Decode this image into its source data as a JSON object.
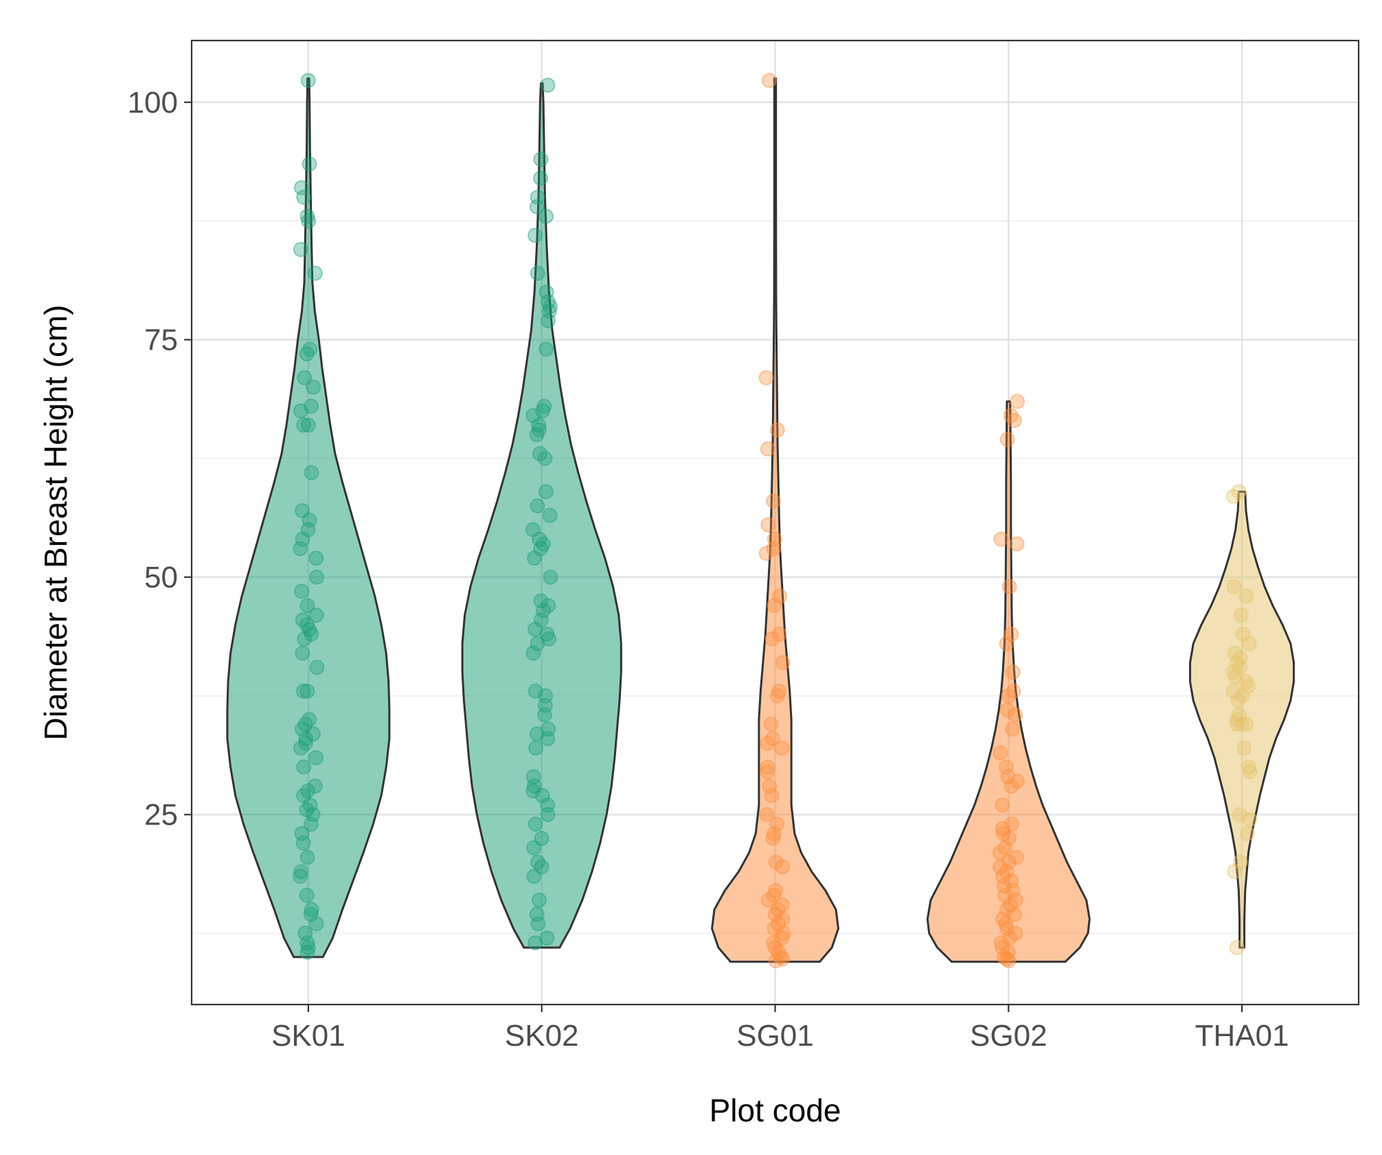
{
  "chart_data": {
    "type": "violin",
    "xlabel": "Plot code",
    "ylabel": "Diameter at Breast Height (cm)",
    "categories": [
      "SK01",
      "SK02",
      "SG01",
      "SG02",
      "THA01"
    ],
    "ylim": [
      5,
      106.5
    ],
    "yticks": [
      25,
      50,
      75,
      100
    ],
    "grid": true,
    "legend": "none",
    "groups": [
      {
        "name": "SK01",
        "color": "#1b9e77",
        "range": [
          10,
          102.5
        ],
        "density": [
          [
            10,
            0.18
          ],
          [
            12,
            0.3
          ],
          [
            15,
            0.42
          ],
          [
            18,
            0.55
          ],
          [
            21,
            0.68
          ],
          [
            24,
            0.8
          ],
          [
            27,
            0.9
          ],
          [
            30,
            0.96
          ],
          [
            33,
            1.0
          ],
          [
            36,
            1.0
          ],
          [
            39,
            0.99
          ],
          [
            42,
            0.96
          ],
          [
            45,
            0.9
          ],
          [
            48,
            0.82
          ],
          [
            51,
            0.72
          ],
          [
            54,
            0.62
          ],
          [
            57,
            0.52
          ],
          [
            60,
            0.42
          ],
          [
            63,
            0.33
          ],
          [
            66,
            0.27
          ],
          [
            69,
            0.22
          ],
          [
            72,
            0.17
          ],
          [
            75,
            0.13
          ],
          [
            78,
            0.08
          ],
          [
            81,
            0.05
          ],
          [
            85,
            0.04
          ],
          [
            90,
            0.03
          ],
          [
            95,
            0.02
          ],
          [
            100,
            0.015
          ],
          [
            102.5,
            0.01
          ]
        ],
        "points": [
          102.3,
          93.5,
          91,
          90,
          88,
          87.5,
          84.5,
          82,
          74,
          73.5,
          71,
          70,
          68,
          67.5,
          66,
          66,
          61,
          57,
          56,
          55,
          54,
          53,
          52,
          50,
          48.5,
          47,
          46,
          45.5,
          45,
          44.5,
          44,
          43.5,
          42,
          40.5,
          38,
          38,
          35,
          34.5,
          34,
          33.5,
          33,
          32.5,
          32,
          31,
          30,
          28,
          27.5,
          27,
          26,
          25.5,
          25,
          24,
          23,
          22,
          20.5,
          19,
          18.5,
          16.5,
          15,
          14.5,
          13.5,
          12.5,
          11.5,
          11,
          10.5
        ]
      },
      {
        "name": "SK02",
        "color": "#1b9e77",
        "range": [
          11,
          102
        ],
        "density": [
          [
            11,
            0.22
          ],
          [
            13,
            0.35
          ],
          [
            16,
            0.5
          ],
          [
            19,
            0.62
          ],
          [
            22,
            0.72
          ],
          [
            25,
            0.8
          ],
          [
            28,
            0.86
          ],
          [
            31,
            0.9
          ],
          [
            34,
            0.93
          ],
          [
            37,
            0.96
          ],
          [
            40,
            0.98
          ],
          [
            43,
            0.98
          ],
          [
            46,
            0.95
          ],
          [
            49,
            0.88
          ],
          [
            52,
            0.78
          ],
          [
            55,
            0.66
          ],
          [
            58,
            0.55
          ],
          [
            61,
            0.45
          ],
          [
            64,
            0.36
          ],
          [
            67,
            0.29
          ],
          [
            70,
            0.23
          ],
          [
            73,
            0.18
          ],
          [
            76,
            0.13
          ],
          [
            80,
            0.09
          ],
          [
            85,
            0.06
          ],
          [
            90,
            0.04
          ],
          [
            95,
            0.03
          ],
          [
            100,
            0.02
          ],
          [
            102,
            0.01
          ]
        ],
        "points": [
          101.8,
          94,
          92,
          90,
          89,
          88,
          86,
          82,
          80,
          79,
          78.5,
          78,
          77,
          74,
          68,
          67.5,
          67,
          66,
          65.5,
          65,
          63,
          62.5,
          59,
          57.5,
          56.5,
          55,
          54,
          53.5,
          53,
          52,
          50,
          47.5,
          47,
          46.5,
          45.5,
          44.5,
          44,
          43.5,
          43,
          42,
          38,
          37.5,
          36.5,
          35.5,
          34,
          33.5,
          33,
          32,
          29,
          28,
          27.5,
          27,
          26,
          25,
          24,
          22.5,
          21.5,
          20,
          19.5,
          18.5,
          16,
          14.5,
          13.5,
          12,
          11.5
        ]
      },
      {
        "name": "SG01",
        "color": "#fc8d3d",
        "range": [
          9.5,
          102.5
        ],
        "density": [
          [
            9.5,
            0.55
          ],
          [
            11,
            0.7
          ],
          [
            13,
            0.78
          ],
          [
            15,
            0.75
          ],
          [
            17,
            0.62
          ],
          [
            19,
            0.45
          ],
          [
            21,
            0.32
          ],
          [
            23,
            0.24
          ],
          [
            26,
            0.2
          ],
          [
            29,
            0.2
          ],
          [
            32,
            0.2
          ],
          [
            35,
            0.2
          ],
          [
            38,
            0.18
          ],
          [
            41,
            0.15
          ],
          [
            44,
            0.12
          ],
          [
            47,
            0.1
          ],
          [
            50,
            0.08
          ],
          [
            53,
            0.06
          ],
          [
            56,
            0.05
          ],
          [
            60,
            0.04
          ],
          [
            64,
            0.03
          ],
          [
            68,
            0.025
          ],
          [
            72,
            0.02
          ],
          [
            76,
            0.015
          ],
          [
            80,
            0.012
          ],
          [
            90,
            0.01
          ],
          [
            100,
            0.01
          ],
          [
            102.5,
            0.01
          ]
        ],
        "points": [
          102.3,
          71,
          65.5,
          63.5,
          58,
          55.5,
          54,
          53,
          52.5,
          48,
          47,
          44,
          43.5,
          41,
          38,
          37.5,
          34.5,
          33,
          32.5,
          32,
          30,
          29.5,
          28,
          27,
          25,
          24,
          23,
          22.5,
          20,
          19.5,
          17,
          16.5,
          16,
          15.5,
          15,
          14.5,
          14,
          13.5,
          13,
          12.5,
          12,
          11.5,
          11,
          10.5,
          10,
          9.8,
          9.6
        ]
      },
      {
        "name": "SG02",
        "color": "#fc8d3d",
        "range": [
          9.5,
          68.5
        ],
        "density": [
          [
            9.5,
            0.7
          ],
          [
            11,
            0.88
          ],
          [
            12.5,
            0.98
          ],
          [
            14,
            1.0
          ],
          [
            16,
            0.96
          ],
          [
            18,
            0.84
          ],
          [
            20,
            0.72
          ],
          [
            22,
            0.62
          ],
          [
            24,
            0.52
          ],
          [
            26,
            0.42
          ],
          [
            28,
            0.34
          ],
          [
            30,
            0.27
          ],
          [
            32,
            0.21
          ],
          [
            34,
            0.16
          ],
          [
            36,
            0.12
          ],
          [
            38,
            0.09
          ],
          [
            40,
            0.07
          ],
          [
            43,
            0.05
          ],
          [
            46,
            0.04
          ],
          [
            50,
            0.035
          ],
          [
            55,
            0.03
          ],
          [
            60,
            0.03
          ],
          [
            64,
            0.025
          ],
          [
            68.5,
            0.02
          ]
        ],
        "points": [
          68.5,
          67,
          66.5,
          64.5,
          54,
          53.5,
          49,
          44,
          43,
          40,
          38,
          37.5,
          36,
          35.5,
          34,
          31.5,
          30,
          29,
          28.5,
          28,
          26,
          24,
          23.5,
          23,
          22.5,
          21.5,
          21,
          20.5,
          20,
          19.5,
          19,
          18.5,
          18,
          17.5,
          17,
          16.5,
          16,
          15.5,
          15,
          14.5,
          14,
          13.5,
          13,
          12.5,
          12,
          11.5,
          11,
          10.5,
          10,
          9.8,
          9.6
        ]
      },
      {
        "name": "THA01",
        "color": "#e6c36a",
        "range": [
          11,
          59
        ],
        "density": [
          [
            11,
            0.03
          ],
          [
            14,
            0.03
          ],
          [
            17,
            0.04
          ],
          [
            19,
            0.06
          ],
          [
            21,
            0.08
          ],
          [
            23,
            0.12
          ],
          [
            25,
            0.17
          ],
          [
            27,
            0.22
          ],
          [
            29,
            0.28
          ],
          [
            31,
            0.34
          ],
          [
            33,
            0.42
          ],
          [
            35,
            0.52
          ],
          [
            37,
            0.6
          ],
          [
            39,
            0.64
          ],
          [
            41,
            0.64
          ],
          [
            43,
            0.6
          ],
          [
            45,
            0.5
          ],
          [
            47,
            0.38
          ],
          [
            49,
            0.28
          ],
          [
            51,
            0.2
          ],
          [
            53,
            0.13
          ],
          [
            55,
            0.08
          ],
          [
            57,
            0.05
          ],
          [
            59,
            0.04
          ]
        ],
        "points": [
          59,
          58.5,
          49,
          48,
          46,
          44,
          43,
          42,
          41.5,
          41,
          40.5,
          40,
          39.5,
          39,
          38.5,
          38,
          37.5,
          37,
          35.5,
          35,
          34.5,
          34.5,
          34.5,
          32,
          30,
          29.5,
          25,
          24.5,
          23,
          20,
          19,
          11
        ]
      }
    ]
  }
}
